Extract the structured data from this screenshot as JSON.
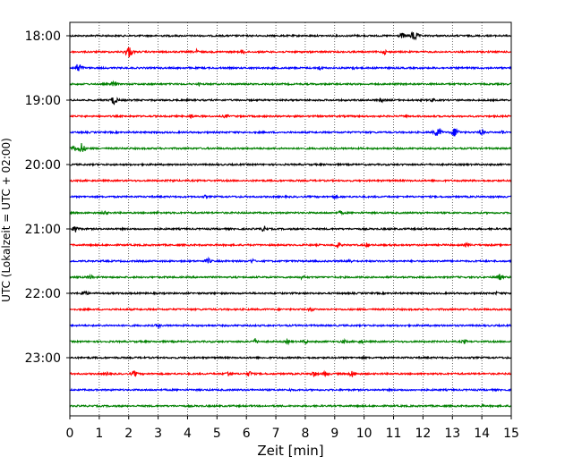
{
  "chart_data": {
    "type": "line",
    "title": "",
    "xlabel": "Zeit  [min]",
    "ylabel": "UTC (Lokalzeit = UTC + 02:00)",
    "xlim": [
      0,
      15
    ],
    "xticks": [
      0,
      1,
      2,
      3,
      4,
      5,
      6,
      7,
      8,
      9,
      10,
      11,
      12,
      13,
      14,
      15
    ],
    "ytick_labels": [
      "18:00",
      "19:00",
      "20:00",
      "21:00",
      "22:00",
      "23:00"
    ],
    "grid": "vertical dotted",
    "series": [
      {
        "label": "18:00",
        "color": "#000000",
        "events": [
          {
            "x": 11.7,
            "amplitude": 8
          },
          {
            "x": 11.3,
            "amplitude": 4
          },
          {
            "x": 9.7,
            "amplitude": 2
          }
        ]
      },
      {
        "label": "18:15",
        "color": "#ff0000",
        "events": [
          {
            "x": 2.0,
            "amplitude": 8
          },
          {
            "x": 4.3,
            "amplitude": 3
          },
          {
            "x": 5.9,
            "amplitude": 3
          },
          {
            "x": 10.7,
            "amplitude": 3
          }
        ]
      },
      {
        "label": "18:30",
        "color": "#0000ff",
        "events": [
          {
            "x": 0.3,
            "amplitude": 7
          },
          {
            "x": 8.5,
            "amplitude": 3
          },
          {
            "x": 9.6,
            "amplitude": 3
          }
        ]
      },
      {
        "label": "18:45",
        "color": "#008000",
        "events": [
          {
            "x": 1.5,
            "amplitude": 4
          },
          {
            "x": 4.4,
            "amplitude": 2
          }
        ]
      },
      {
        "label": "19:00",
        "color": "#000000",
        "events": [
          {
            "x": 1.5,
            "amplitude": 6
          },
          {
            "x": 10.6,
            "amplitude": 3
          },
          {
            "x": 12.3,
            "amplitude": 3
          }
        ]
      },
      {
        "label": "19:15",
        "color": "#ff0000",
        "events": [
          {
            "x": 4.1,
            "amplitude": 3
          },
          {
            "x": 5.3,
            "amplitude": 3
          },
          {
            "x": 11.4,
            "amplitude": 2
          }
        ]
      },
      {
        "label": "19:30",
        "color": "#0000ff",
        "events": [
          {
            "x": 12.5,
            "amplitude": 7
          },
          {
            "x": 13.1,
            "amplitude": 7
          },
          {
            "x": 14.0,
            "amplitude": 4
          },
          {
            "x": 14.7,
            "amplitude": 3
          }
        ]
      },
      {
        "label": "19:45",
        "color": "#008000",
        "events": [
          {
            "x": 0.4,
            "amplitude": 7
          },
          {
            "x": 0.1,
            "amplitude": 5
          }
        ]
      },
      {
        "label": "20:00",
        "color": "#000000",
        "events": []
      },
      {
        "label": "20:15",
        "color": "#ff0000",
        "events": [
          {
            "x": 3.5,
            "amplitude": 2
          }
        ]
      },
      {
        "label": "20:30",
        "color": "#0000ff",
        "events": [
          {
            "x": 4.6,
            "amplitude": 2
          },
          {
            "x": 9.0,
            "amplitude": 3
          }
        ]
      },
      {
        "label": "20:45",
        "color": "#008000",
        "events": [
          {
            "x": 1.2,
            "amplitude": 3
          },
          {
            "x": 3.0,
            "amplitude": 2
          },
          {
            "x": 9.2,
            "amplitude": 3
          }
        ]
      },
      {
        "label": "21:00",
        "color": "#000000",
        "events": [
          {
            "x": 0.2,
            "amplitude": 5
          },
          {
            "x": 6.6,
            "amplitude": 4
          }
        ]
      },
      {
        "label": "21:15",
        "color": "#ff0000",
        "events": [
          {
            "x": 9.1,
            "amplitude": 4
          },
          {
            "x": 10.1,
            "amplitude": 3
          },
          {
            "x": 13.5,
            "amplitude": 3
          }
        ]
      },
      {
        "label": "21:30",
        "color": "#0000ff",
        "events": [
          {
            "x": 4.7,
            "amplitude": 4
          },
          {
            "x": 6.2,
            "amplitude": 3
          },
          {
            "x": 9.5,
            "amplitude": 3
          },
          {
            "x": 12.6,
            "amplitude": 2
          }
        ]
      },
      {
        "label": "21:45",
        "color": "#008000",
        "events": [
          {
            "x": 0.7,
            "amplitude": 3
          },
          {
            "x": 7.9,
            "amplitude": 3
          },
          {
            "x": 14.6,
            "amplitude": 4
          }
        ]
      },
      {
        "label": "22:00",
        "color": "#000000",
        "events": [
          {
            "x": 0.5,
            "amplitude": 4
          },
          {
            "x": 14.5,
            "amplitude": 2
          }
        ]
      },
      {
        "label": "22:15",
        "color": "#ff0000",
        "events": [
          {
            "x": 8.2,
            "amplitude": 3
          }
        ]
      },
      {
        "label": "22:30",
        "color": "#0000ff",
        "events": [
          {
            "x": 3.0,
            "amplitude": 3
          }
        ]
      },
      {
        "label": "22:45",
        "color": "#008000",
        "events": [
          {
            "x": 6.3,
            "amplitude": 4
          },
          {
            "x": 7.4,
            "amplitude": 3
          },
          {
            "x": 8.0,
            "amplitude": 3
          },
          {
            "x": 9.3,
            "amplitude": 3
          },
          {
            "x": 9.9,
            "amplitude": 3
          },
          {
            "x": 13.4,
            "amplitude": 3
          }
        ]
      },
      {
        "label": "23:00",
        "color": "#000000",
        "events": [
          {
            "x": 10.0,
            "amplitude": 2
          }
        ]
      },
      {
        "label": "23:15",
        "color": "#ff0000",
        "events": [
          {
            "x": 1.3,
            "amplitude": 3
          },
          {
            "x": 2.2,
            "amplitude": 4
          },
          {
            "x": 5.4,
            "amplitude": 4
          },
          {
            "x": 6.1,
            "amplitude": 4
          },
          {
            "x": 8.3,
            "amplitude": 4
          },
          {
            "x": 8.7,
            "amplitude": 4
          },
          {
            "x": 9.6,
            "amplitude": 5
          }
        ]
      },
      {
        "label": "23:30",
        "color": "#0000ff",
        "events": [
          {
            "x": 7.5,
            "amplitude": 2
          }
        ]
      },
      {
        "label": "23:45",
        "color": "#008000",
        "events": [
          {
            "x": 14.0,
            "amplitude": 2
          }
        ]
      }
    ]
  }
}
